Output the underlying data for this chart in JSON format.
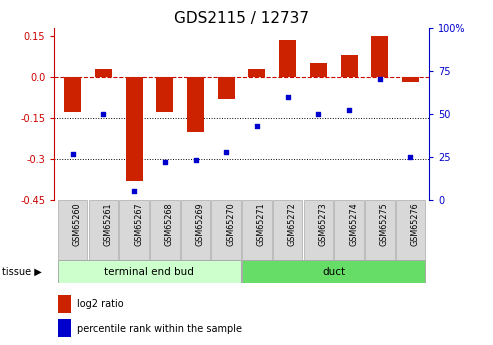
{
  "title": "GDS2115 / 12737",
  "categories": [
    "GSM65260",
    "GSM65261",
    "GSM65267",
    "GSM65268",
    "GSM65269",
    "GSM65270",
    "GSM65271",
    "GSM65272",
    "GSM65273",
    "GSM65274",
    "GSM65275",
    "GSM65276"
  ],
  "log2_ratio": [
    -0.13,
    0.03,
    -0.38,
    -0.13,
    -0.2,
    -0.08,
    0.03,
    0.135,
    0.05,
    0.08,
    0.15,
    -0.02
  ],
  "percentile_rank": [
    27,
    50,
    5,
    22,
    23,
    28,
    43,
    60,
    50,
    52,
    70,
    25
  ],
  "ylim_left": [
    -0.45,
    0.18
  ],
  "ylim_right": [
    0,
    100
  ],
  "yticks_left": [
    -0.45,
    -0.3,
    -0.15,
    0.0,
    0.15
  ],
  "yticks_right": [
    0,
    25,
    50,
    75,
    100
  ],
  "hlines": [
    -0.15,
    -0.3
  ],
  "bar_color": "#cc2200",
  "dot_color": "#0000cc",
  "tissue_groups": [
    {
      "label": "terminal end bud",
      "start": 0,
      "end": 5,
      "color": "#ccffcc"
    },
    {
      "label": "duct",
      "start": 6,
      "end": 11,
      "color": "#66dd66"
    }
  ],
  "zero_line_color": "#cc0000",
  "title_fontsize": 11,
  "tick_fontsize": 7,
  "label_fontsize": 7.5
}
